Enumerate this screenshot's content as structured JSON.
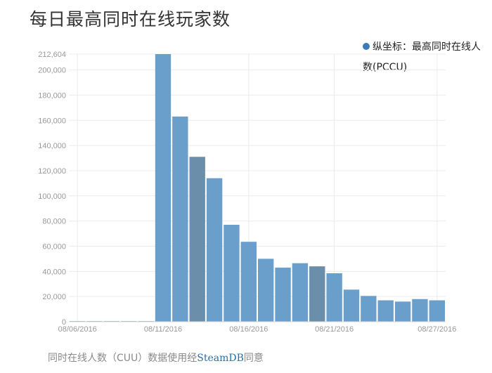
{
  "title": "每日最高同时在线玩家数",
  "legend": {
    "label": "纵坐标：最高同时在线人数(PCCU)",
    "color": "#3b7ab8"
  },
  "source": {
    "prefix": "同时在线人数（CUU）数据使用经",
    "brand": "SteamDB",
    "suffix": "同意"
  },
  "chart_data": {
    "type": "bar",
    "x_tick_labels": [
      "08/06/2016",
      "08/11/2016",
      "08/16/2016",
      "08/21/2016",
      "08/27/2016"
    ],
    "categories": [
      "08/06/2016",
      "08/07/2016",
      "08/08/2016",
      "08/09/2016",
      "08/10/2016",
      "08/11/2016",
      "08/12/2016",
      "08/13/2016",
      "08/14/2016",
      "08/15/2016",
      "08/16/2016",
      "08/17/2016",
      "08/18/2016",
      "08/19/2016",
      "08/20/2016",
      "08/21/2016",
      "08/22/2016",
      "08/23/2016",
      "08/24/2016",
      "08/25/2016",
      "08/26/2016",
      "08/27/2016"
    ],
    "values": [
      500,
      500,
      500,
      500,
      500,
      212604,
      163000,
      131000,
      114000,
      77000,
      63500,
      50000,
      43000,
      46500,
      44000,
      38500,
      25500,
      20500,
      17000,
      16000,
      18000,
      17000
    ],
    "highlight_indices": [
      7,
      14
    ],
    "colors": {
      "bar": "#6a9fcc",
      "bar_highlight": "#6b8fab",
      "grid": "#ececec",
      "axis_text": "#999999"
    },
    "ylim": [
      0,
      212604
    ],
    "y_ticks": [
      0,
      20000,
      40000,
      60000,
      80000,
      100000,
      120000,
      140000,
      160000,
      180000,
      200000,
      212604
    ],
    "y_tick_labels": [
      "0",
      "20,000",
      "40,000",
      "60,000",
      "80,000",
      "100,000",
      "120,000",
      "140,000",
      "160,000",
      "180,000",
      "200,000",
      "212,604"
    ],
    "grid": true,
    "legend_position": "top-right",
    "xlabel": "",
    "ylabel": ""
  }
}
